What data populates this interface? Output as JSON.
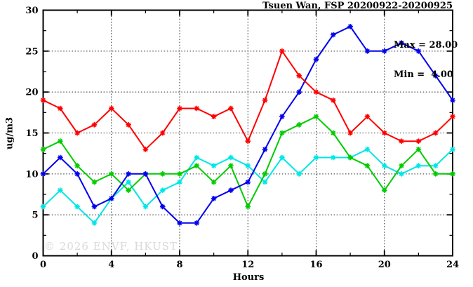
{
  "title": "Tsuen Wan, FSP 20200922-20200925",
  "annotation_box": {
    "max_label": "Max = 28.00",
    "min_label": "Min =  4.00"
  },
  "watermark": "© 2026 ENVF, HKUST",
  "chart_data": {
    "type": "line",
    "title": "Tsuen Wan, FSP 20200922-20200925",
    "xlabel": "Hours",
    "ylabel": "ug/m3",
    "xlim": [
      0,
      24
    ],
    "ylim": [
      0,
      30
    ],
    "x_major_ticks": [
      0,
      4,
      8,
      12,
      16,
      20,
      24
    ],
    "x_minor_ticks": [
      2,
      6,
      10,
      14,
      18,
      22
    ],
    "y_major_ticks": [
      0,
      5,
      10,
      15,
      20,
      25,
      30
    ],
    "y_minor_ticks": [
      2.5,
      7.5,
      12.5,
      17.5,
      22.5,
      27.5
    ],
    "grid": {
      "style": "dotted",
      "x_at": [
        4,
        8,
        12,
        16,
        20
      ],
      "y_at": [
        5,
        10,
        15,
        20,
        25
      ]
    },
    "legend": "none",
    "frame_color": "#000000",
    "x": [
      0,
      1,
      2,
      3,
      4,
      5,
      6,
      7,
      8,
      9,
      10,
      11,
      12,
      13,
      14,
      15,
      16,
      17,
      18,
      19,
      20,
      21,
      22,
      23,
      24
    ],
    "series": [
      {
        "name": "cyan",
        "color": "#00e6e6",
        "marker": "asterisk",
        "values": [
          6,
          8,
          6,
          4,
          7,
          9,
          6,
          8,
          9,
          12,
          11,
          12,
          11,
          9,
          12,
          10,
          12,
          12,
          12,
          13,
          11,
          10,
          11,
          11,
          13
        ]
      },
      {
        "name": "green",
        "color": "#00cc00",
        "marker": "asterisk",
        "values": [
          13,
          14,
          11,
          9,
          10,
          8,
          10,
          10,
          10,
          11,
          9,
          11,
          6,
          10,
          15,
          16,
          17,
          15,
          12,
          11,
          8,
          11,
          13,
          10,
          10
        ]
      },
      {
        "name": "blue",
        "color": "#0000ee",
        "marker": "asterisk",
        "values": [
          10,
          12,
          10,
          6,
          7,
          10,
          10,
          6,
          4,
          4,
          7,
          8,
          9,
          13,
          17,
          20,
          24,
          27,
          28,
          25,
          25,
          26,
          25,
          22,
          19
        ]
      },
      {
        "name": "red",
        "color": "#ff0000",
        "marker": "asterisk",
        "values": [
          19,
          18,
          15,
          16,
          18,
          16,
          13,
          15,
          18,
          18,
          17,
          18,
          14,
          19,
          25,
          22,
          20,
          19,
          15,
          17,
          15,
          14,
          14,
          15,
          17
        ]
      }
    ],
    "stats": {
      "max": 28.0,
      "min": 4.0
    }
  }
}
